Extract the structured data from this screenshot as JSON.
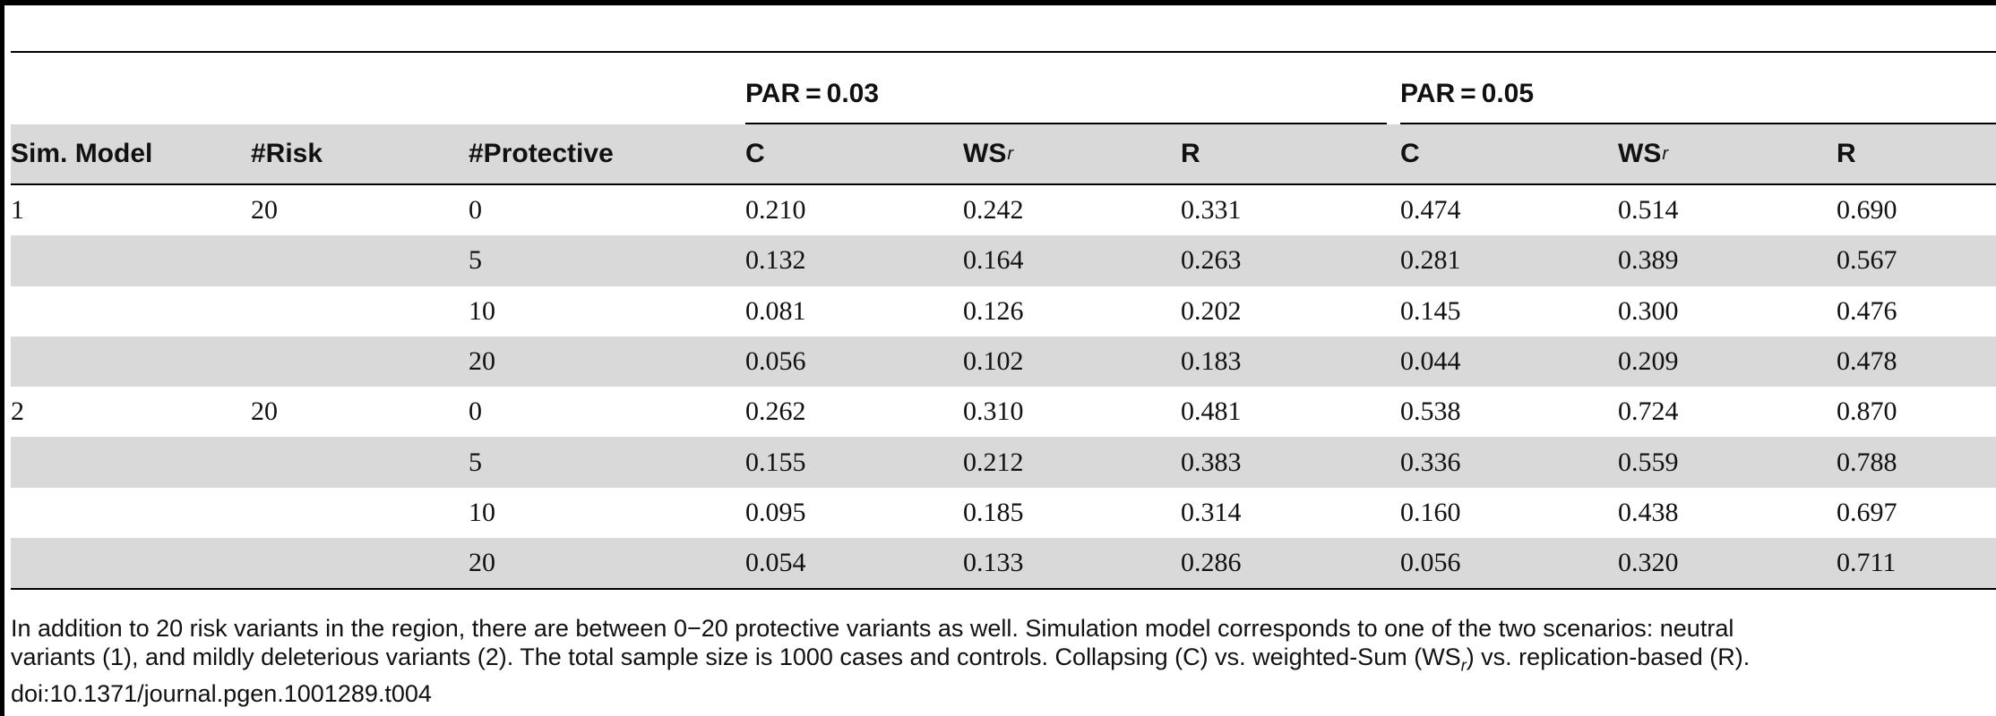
{
  "table": {
    "groups": [
      {
        "label": "PAR = 0.03"
      },
      {
        "label": "PAR = 0.05"
      }
    ],
    "headers": {
      "sim_model": "Sim. Model",
      "risk": "#Risk",
      "protective": "#Protective",
      "c1": "C",
      "ws1": "WS",
      "ws1_sub": "r",
      "r1": "R",
      "c2": "C",
      "ws2": "WS",
      "ws2_sub": "r",
      "r2": "R"
    },
    "rows": [
      {
        "sim_model": "1",
        "risk": "20",
        "protective": "0",
        "c1": "0.210",
        "ws1": "0.242",
        "r1": "0.331",
        "c2": "0.474",
        "ws2": "0.514",
        "r2": "0.690"
      },
      {
        "sim_model": "",
        "risk": "",
        "protective": "5",
        "c1": "0.132",
        "ws1": "0.164",
        "r1": "0.263",
        "c2": "0.281",
        "ws2": "0.389",
        "r2": "0.567"
      },
      {
        "sim_model": "",
        "risk": "",
        "protective": "10",
        "c1": "0.081",
        "ws1": "0.126",
        "r1": "0.202",
        "c2": "0.145",
        "ws2": "0.300",
        "r2": "0.476"
      },
      {
        "sim_model": "",
        "risk": "",
        "protective": "20",
        "c1": "0.056",
        "ws1": "0.102",
        "r1": "0.183",
        "c2": "0.044",
        "ws2": "0.209",
        "r2": "0.478"
      },
      {
        "sim_model": "2",
        "risk": "20",
        "protective": "0",
        "c1": "0.262",
        "ws1": "0.310",
        "r1": "0.481",
        "c2": "0.538",
        "ws2": "0.724",
        "r2": "0.870"
      },
      {
        "sim_model": "",
        "risk": "",
        "protective": "5",
        "c1": "0.155",
        "ws1": "0.212",
        "r1": "0.383",
        "c2": "0.336",
        "ws2": "0.559",
        "r2": "0.788"
      },
      {
        "sim_model": "",
        "risk": "",
        "protective": "10",
        "c1": "0.095",
        "ws1": "0.185",
        "r1": "0.314",
        "c2": "0.160",
        "ws2": "0.438",
        "r2": "0.697"
      },
      {
        "sim_model": "",
        "risk": "",
        "protective": "20",
        "c1": "0.054",
        "ws1": "0.133",
        "r1": "0.286",
        "c2": "0.056",
        "ws2": "0.320",
        "r2": "0.711"
      }
    ]
  },
  "footnote": {
    "line1": "In addition to 20 risk variants in the region, there are between 0−20 protective variants as well. Simulation model corresponds to one of the two scenarios: neutral",
    "line2_a": "variants (1), and mildly deleterious variants (2). The total sample size is 1000 cases and controls. Collapsing (C) vs. weighted-Sum (WS",
    "line2_sub": "r",
    "line2_b": ") vs. replication-based (R).",
    "doi": "doi:10.1371/journal.pgen.1001289.t004"
  }
}
